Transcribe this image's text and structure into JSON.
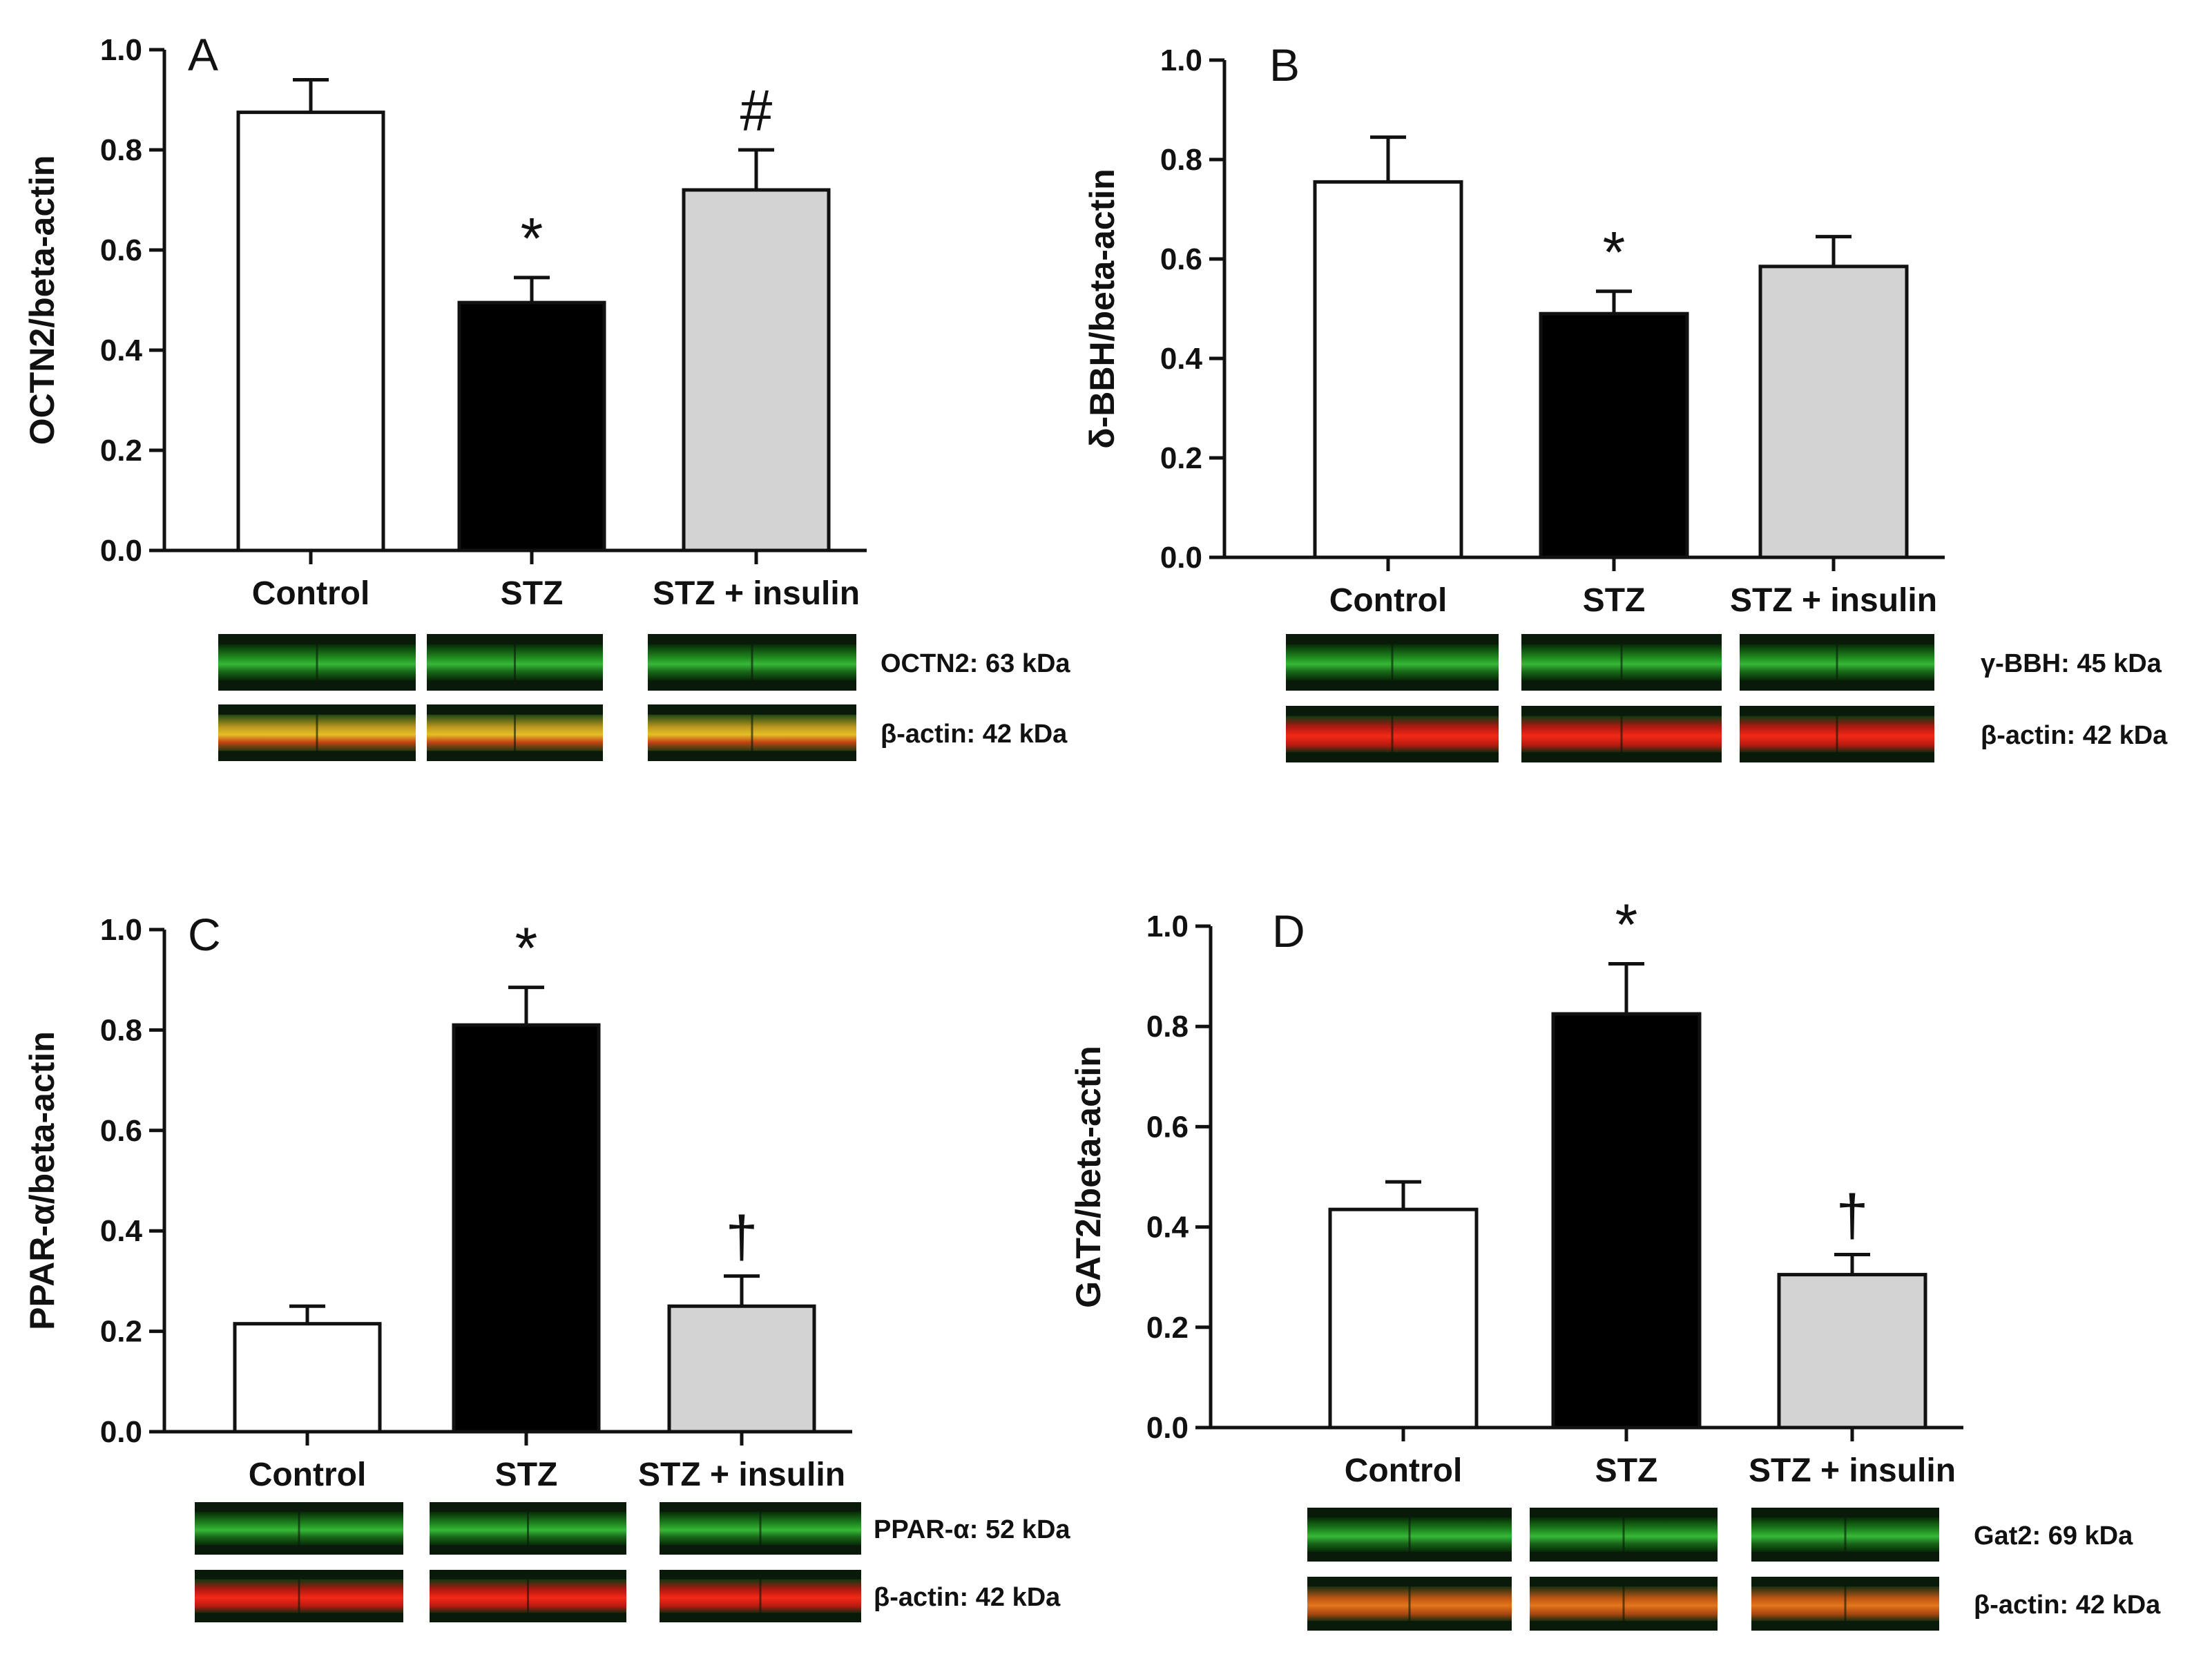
{
  "chart_data": [
    {
      "type": "bar",
      "panel": "A",
      "ylabel": "OCTN2/beta-actin",
      "ylim": [
        0,
        1.0
      ],
      "yticks": [
        "0.0",
        "0.2",
        "0.4",
        "0.6",
        "0.8",
        "1.0"
      ],
      "categories": [
        "Control",
        "STZ",
        "STZ + insulin"
      ],
      "values": [
        0.875,
        0.495,
        0.72
      ],
      "errors": [
        0.065,
        0.05,
        0.08
      ],
      "colors": [
        "#ffffff",
        "#000000",
        "#d3d3d3"
      ],
      "annotations": [
        "",
        "*",
        "#"
      ],
      "blots": [
        {
          "label": "OCTN2: 63 kDa",
          "style": "green"
        },
        {
          "label": "β-actin: 42 kDa",
          "style": "yellow"
        }
      ]
    },
    {
      "type": "bar",
      "panel": "B",
      "ylabel": "δ-BBH/beta-actin",
      "ylim": [
        0,
        1.0
      ],
      "yticks": [
        "0.0",
        "0.2",
        "0.4",
        "0.6",
        "0.8",
        "1.0"
      ],
      "categories": [
        "Control",
        "STZ",
        "STZ + insulin"
      ],
      "values": [
        0.755,
        0.49,
        0.585
      ],
      "errors": [
        0.09,
        0.045,
        0.06
      ],
      "colors": [
        "#ffffff",
        "#000000",
        "#d3d3d3"
      ],
      "annotations": [
        "",
        "*",
        ""
      ],
      "blots": [
        {
          "label": "γ-BBH: 45 kDa",
          "style": "green"
        },
        {
          "label": "β-actin: 42 kDa",
          "style": "red"
        }
      ]
    },
    {
      "type": "bar",
      "panel": "C",
      "ylabel": "PPAR-α/beta-actin",
      "ylim": [
        0,
        1.0
      ],
      "yticks": [
        "0.0",
        "0.2",
        "0.4",
        "0.6",
        "0.8",
        "1.0"
      ],
      "categories": [
        "Control",
        "STZ",
        "STZ + insulin"
      ],
      "values": [
        0.215,
        0.81,
        0.25
      ],
      "errors": [
        0.035,
        0.075,
        0.06
      ],
      "colors": [
        "#ffffff",
        "#000000",
        "#d3d3d3"
      ],
      "annotations": [
        "",
        "*",
        "†"
      ],
      "blots": [
        {
          "label": "PPAR-α:  52 kDa",
          "style": "green"
        },
        {
          "label": "β-actin: 42 kDa",
          "style": "red"
        }
      ]
    },
    {
      "type": "bar",
      "panel": "D",
      "ylabel": "GAT2/beta-actin",
      "ylim": [
        0,
        1.0
      ],
      "yticks": [
        "0.0",
        "0.2",
        "0.4",
        "0.6",
        "0.8",
        "1.0"
      ],
      "categories": [
        "Control",
        "STZ",
        "STZ + insulin"
      ],
      "values": [
        0.435,
        0.825,
        0.305
      ],
      "errors": [
        0.055,
        0.1,
        0.04
      ],
      "colors": [
        "#ffffff",
        "#000000",
        "#d3d3d3"
      ],
      "annotations": [
        "",
        "*",
        "†"
      ],
      "blots": [
        {
          "label": "Gat2:  69 kDa",
          "style": "green"
        },
        {
          "label": "β-actin: 42 kDa",
          "style": "orange"
        }
      ]
    }
  ]
}
